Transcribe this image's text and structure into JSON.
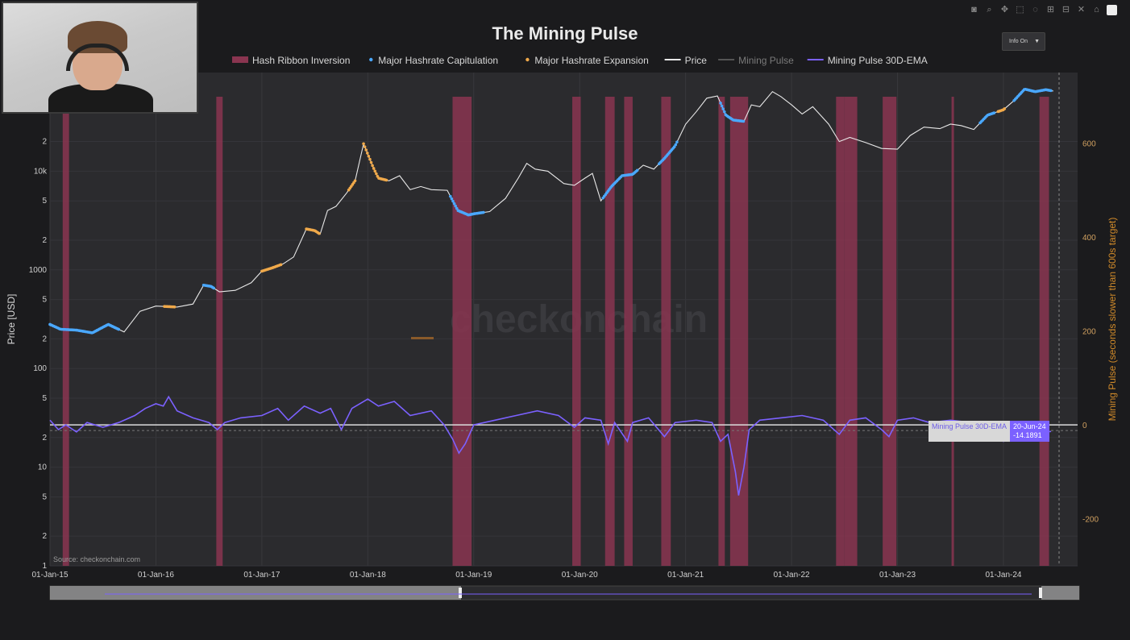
{
  "chart_data": {
    "type": "line",
    "title": "The Mining Pulse",
    "legend": {
      "placement": "top-center",
      "entries": [
        {
          "name": "Hash Ribbon Inversion",
          "color": "#8a3550",
          "kind": "bar"
        },
        {
          "name": "Major Hashrate Capitulation",
          "color": "#4aa8ff",
          "kind": "dot"
        },
        {
          "name": "Major Hashrate Expansion",
          "color": "#f0a94a",
          "kind": "dot"
        },
        {
          "name": "Price",
          "color": "#e8e8e8",
          "kind": "line"
        },
        {
          "name": "Mining Pulse",
          "color": "#555555",
          "kind": "line"
        },
        {
          "name": "Mining Pulse 30D-EMA",
          "color": "#7b61ff",
          "kind": "line"
        }
      ]
    },
    "x_ticks": [
      "01-Jan-15",
      "01-Jan-16",
      "01-Jan-17",
      "01-Jan-18",
      "01-Jan-19",
      "01-Jan-20",
      "01-Jan-21",
      "01-Jan-22",
      "01-Jan-23",
      "01-Jan-24"
    ],
    "x_range": [
      2015.0,
      2024.7
    ],
    "y_left": {
      "label": "Price [USD]",
      "scale": "log",
      "range": [
        1,
        100000
      ],
      "ticks": [
        {
          "v": 1,
          "t": "1"
        },
        {
          "v": 2,
          "t": "2"
        },
        {
          "v": 5,
          "t": "5"
        },
        {
          "v": 10,
          "t": "10"
        },
        {
          "v": 20,
          "t": "2"
        },
        {
          "v": 50,
          "t": "5"
        },
        {
          "v": 100,
          "t": "100"
        },
        {
          "v": 200,
          "t": "2"
        },
        {
          "v": 500,
          "t": "5"
        },
        {
          "v": 1000,
          "t": "1000"
        },
        {
          "v": 2000,
          "t": "2"
        },
        {
          "v": 5000,
          "t": "5"
        },
        {
          "v": 10000,
          "t": "10k"
        },
        {
          "v": 20000,
          "t": "2"
        }
      ]
    },
    "y_right": {
      "label": "Mining Pulse (seconds slower than 600s target)",
      "range": [
        -300,
        750
      ],
      "ticks": [
        {
          "v": 600,
          "t": "600"
        },
        {
          "v": 400,
          "t": "400"
        },
        {
          "v": 200,
          "t": "200"
        },
        {
          "v": 0,
          "t": "0"
        },
        {
          "v": -200,
          "t": "-200"
        }
      ]
    },
    "hash_ribbon_inversions": [
      [
        2015.12,
        2015.18
      ],
      [
        2016.57,
        2016.63
      ],
      [
        2018.8,
        2018.98
      ],
      [
        2019.93,
        2020.01
      ],
      [
        2020.24,
        2020.33
      ],
      [
        2020.42,
        2020.5
      ],
      [
        2020.77,
        2020.86
      ],
      [
        2021.31,
        2021.37
      ],
      [
        2021.42,
        2021.59
      ],
      [
        2022.42,
        2022.5
      ],
      [
        2022.5,
        2022.62
      ],
      [
        2022.86,
        2022.99
      ],
      [
        2023.51,
        2023.53
      ],
      [
        2024.34,
        2024.43
      ]
    ],
    "series": [
      {
        "name": "Price",
        "color": "#e8e8e8",
        "axis": "left",
        "points": [
          [
            2015.0,
            280
          ],
          [
            2015.1,
            250
          ],
          [
            2015.25,
            245
          ],
          [
            2015.4,
            230
          ],
          [
            2015.55,
            280
          ],
          [
            2015.7,
            235
          ],
          [
            2015.85,
            380
          ],
          [
            2016.0,
            430
          ],
          [
            2016.2,
            420
          ],
          [
            2016.35,
            450
          ],
          [
            2016.45,
            700
          ],
          [
            2016.52,
            680
          ],
          [
            2016.6,
            600
          ],
          [
            2016.75,
            620
          ],
          [
            2016.9,
            740
          ],
          [
            2017.0,
            970
          ],
          [
            2017.1,
            1050
          ],
          [
            2017.2,
            1150
          ],
          [
            2017.3,
            1350
          ],
          [
            2017.42,
            2600
          ],
          [
            2017.5,
            2500
          ],
          [
            2017.55,
            2300
          ],
          [
            2017.62,
            4000
          ],
          [
            2017.7,
            4400
          ],
          [
            2017.8,
            6000
          ],
          [
            2017.88,
            8000
          ],
          [
            2017.96,
            19000
          ],
          [
            2018.05,
            11000
          ],
          [
            2018.1,
            8500
          ],
          [
            2018.2,
            8000
          ],
          [
            2018.3,
            9000
          ],
          [
            2018.4,
            6500
          ],
          [
            2018.5,
            7000
          ],
          [
            2018.6,
            6500
          ],
          [
            2018.75,
            6400
          ],
          [
            2018.85,
            4000
          ],
          [
            2018.95,
            3600
          ],
          [
            2019.0,
            3700
          ],
          [
            2019.15,
            3900
          ],
          [
            2019.3,
            5300
          ],
          [
            2019.42,
            8500
          ],
          [
            2019.5,
            12000
          ],
          [
            2019.58,
            10500
          ],
          [
            2019.7,
            10000
          ],
          [
            2019.85,
            7500
          ],
          [
            2019.95,
            7200
          ],
          [
            2020.05,
            8500
          ],
          [
            2020.12,
            9500
          ],
          [
            2020.2,
            5000
          ],
          [
            2020.3,
            7000
          ],
          [
            2020.4,
            9000
          ],
          [
            2020.5,
            9300
          ],
          [
            2020.6,
            11500
          ],
          [
            2020.7,
            10500
          ],
          [
            2020.8,
            13500
          ],
          [
            2020.9,
            18000
          ],
          [
            2021.0,
            30000
          ],
          [
            2021.1,
            40000
          ],
          [
            2021.2,
            55000
          ],
          [
            2021.3,
            58000
          ],
          [
            2021.38,
            37000
          ],
          [
            2021.45,
            33000
          ],
          [
            2021.55,
            32000
          ],
          [
            2021.62,
            47000
          ],
          [
            2021.7,
            45000
          ],
          [
            2021.82,
            64000
          ],
          [
            2021.9,
            57000
          ],
          [
            2022.0,
            47000
          ],
          [
            2022.1,
            38000
          ],
          [
            2022.2,
            45000
          ],
          [
            2022.35,
            30000
          ],
          [
            2022.45,
            20000
          ],
          [
            2022.55,
            22000
          ],
          [
            2022.7,
            19500
          ],
          [
            2022.85,
            17000
          ],
          [
            2023.0,
            16700
          ],
          [
            2023.12,
            23000
          ],
          [
            2023.25,
            28000
          ],
          [
            2023.4,
            27000
          ],
          [
            2023.5,
            30000
          ],
          [
            2023.6,
            29000
          ],
          [
            2023.72,
            26500
          ],
          [
            2023.85,
            37000
          ],
          [
            2024.0,
            42000
          ],
          [
            2024.1,
            52000
          ],
          [
            2024.2,
            68000
          ],
          [
            2024.3,
            64000
          ],
          [
            2024.4,
            67000
          ],
          [
            2024.47,
            65000
          ]
        ]
      },
      {
        "name": "Mining Pulse 30D-EMA",
        "color": "#7b61ff",
        "axis": "right",
        "points": [
          [
            2015.0,
            10
          ],
          [
            2015.08,
            -10
          ],
          [
            2015.15,
            0
          ],
          [
            2015.25,
            -15
          ],
          [
            2015.35,
            5
          ],
          [
            2015.5,
            -5
          ],
          [
            2015.65,
            5
          ],
          [
            2015.8,
            20
          ],
          [
            2015.9,
            35
          ],
          [
            2016.0,
            45
          ],
          [
            2016.07,
            40
          ],
          [
            2016.12,
            60
          ],
          [
            2016.2,
            30
          ],
          [
            2016.35,
            15
          ],
          [
            2016.5,
            5
          ],
          [
            2016.58,
            -10
          ],
          [
            2016.65,
            5
          ],
          [
            2016.8,
            15
          ],
          [
            2017.0,
            20
          ],
          [
            2017.15,
            35
          ],
          [
            2017.25,
            10
          ],
          [
            2017.4,
            40
          ],
          [
            2017.55,
            25
          ],
          [
            2017.65,
            35
          ],
          [
            2017.75,
            -10
          ],
          [
            2017.85,
            35
          ],
          [
            2018.0,
            55
          ],
          [
            2018.1,
            40
          ],
          [
            2018.25,
            50
          ],
          [
            2018.4,
            20
          ],
          [
            2018.6,
            30
          ],
          [
            2018.72,
            0
          ],
          [
            2018.8,
            -30
          ],
          [
            2018.86,
            -60
          ],
          [
            2018.92,
            -40
          ],
          [
            2019.0,
            0
          ],
          [
            2019.2,
            10
          ],
          [
            2019.4,
            20
          ],
          [
            2019.6,
            30
          ],
          [
            2019.8,
            20
          ],
          [
            2019.95,
            -5
          ],
          [
            2020.05,
            15
          ],
          [
            2020.2,
            10
          ],
          [
            2020.27,
            -40
          ],
          [
            2020.33,
            5
          ],
          [
            2020.45,
            -35
          ],
          [
            2020.5,
            5
          ],
          [
            2020.65,
            15
          ],
          [
            2020.8,
            -25
          ],
          [
            2020.9,
            5
          ],
          [
            2021.1,
            10
          ],
          [
            2021.25,
            5
          ],
          [
            2021.33,
            -35
          ],
          [
            2021.4,
            -20
          ],
          [
            2021.47,
            -100
          ],
          [
            2021.5,
            -150
          ],
          [
            2021.55,
            -90
          ],
          [
            2021.6,
            -10
          ],
          [
            2021.7,
            10
          ],
          [
            2021.9,
            15
          ],
          [
            2022.1,
            20
          ],
          [
            2022.3,
            10
          ],
          [
            2022.45,
            -20
          ],
          [
            2022.55,
            10
          ],
          [
            2022.7,
            15
          ],
          [
            2022.85,
            -10
          ],
          [
            2022.92,
            -25
          ],
          [
            2023.0,
            10
          ],
          [
            2023.15,
            15
          ],
          [
            2023.3,
            5
          ],
          [
            2023.5,
            10
          ],
          [
            2023.7,
            5
          ],
          [
            2023.85,
            -10
          ],
          [
            2024.0,
            -35
          ],
          [
            2024.1,
            -10
          ],
          [
            2024.2,
            5
          ],
          [
            2024.35,
            -15
          ],
          [
            2024.45,
            -14
          ]
        ]
      },
      {
        "name": "Major Hashrate Capitulation",
        "color": "#4aa8ff",
        "axis": "left",
        "type": "markers",
        "segments": [
          [
            2015.0,
            2015.65
          ],
          [
            2016.45,
            2016.55
          ],
          [
            2018.78,
            2019.1
          ],
          [
            2020.22,
            2020.55
          ],
          [
            2020.75,
            2020.92
          ],
          [
            2021.33,
            2021.55
          ],
          [
            2023.78,
            2023.92
          ],
          [
            2024.1,
            2024.45
          ]
        ]
      },
      {
        "name": "Major Hashrate Expansion",
        "color": "#f0a94a",
        "axis": "left",
        "type": "markers",
        "segments": [
          [
            2016.08,
            2016.18
          ],
          [
            2017.0,
            2017.18
          ],
          [
            2017.42,
            2017.55
          ],
          [
            2017.82,
            2017.88
          ],
          [
            2017.96,
            2018.18
          ],
          [
            2023.95,
            2024.02
          ]
        ]
      }
    ],
    "annotations": {
      "watermark": "checkonchain",
      "source": "Source: checkonchain.com",
      "hover_label_name": "Mining Pulse 30D-EMA",
      "hover_label_date": "20-Jun-24",
      "hover_label_value": "-14.1891"
    },
    "grid": true
  },
  "toolbar": {
    "icons": [
      "camera-icon",
      "zoom-icon",
      "pan-icon",
      "box-select-icon",
      "lasso-icon",
      "zoom-in-icon",
      "zoom-out-icon",
      "autoscale-icon",
      "home-icon",
      "reset-icon"
    ],
    "info_button_label": "Info On"
  }
}
